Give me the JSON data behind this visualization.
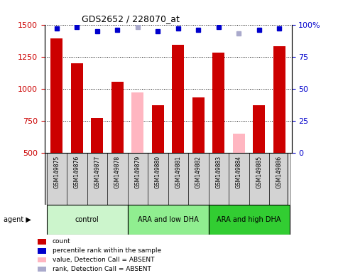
{
  "title": "GDS2652 / 228070_at",
  "samples": [
    "GSM149875",
    "GSM149876",
    "GSM149877",
    "GSM149878",
    "GSM149879",
    "GSM149880",
    "GSM149881",
    "GSM149882",
    "GSM149883",
    "GSM149884",
    "GSM149885",
    "GSM149886"
  ],
  "count_values": [
    1390,
    1200,
    770,
    1055,
    null,
    870,
    1345,
    930,
    1280,
    null,
    870,
    1330
  ],
  "absent_values": [
    null,
    null,
    null,
    null,
    970,
    null,
    null,
    null,
    null,
    650,
    null,
    null
  ],
  "percentile_values": [
    97,
    98,
    95,
    96,
    null,
    95,
    97,
    96,
    98,
    null,
    96,
    97
  ],
  "absent_rank_values": [
    null,
    null,
    null,
    null,
    98,
    null,
    null,
    null,
    null,
    93,
    null,
    null
  ],
  "ylim": [
    500,
    1500
  ],
  "yticks": [
    500,
    750,
    1000,
    1250,
    1500
  ],
  "right_yticks": [
    0,
    25,
    50,
    75,
    100
  ],
  "right_ylim": [
    0,
    100
  ],
  "groups": [
    {
      "label": "control",
      "start": 0,
      "end": 3,
      "color": "#ccf5cc"
    },
    {
      "label": "ARA and low DHA",
      "start": 4,
      "end": 7,
      "color": "#90ee90"
    },
    {
      "label": "ARA and high DHA",
      "start": 8,
      "end": 11,
      "color": "#32cd32"
    }
  ],
  "bar_color_present": "#cc0000",
  "bar_color_absent": "#ffb6c1",
  "dot_color_present": "#0000cc",
  "dot_color_absent": "#aaaacc",
  "bg_color": "#d3d3d3",
  "plot_bg": "#ffffff",
  "grid_color": "#000000",
  "ylabel_color": "#cc0000",
  "ylabel2_color": "#0000cc",
  "bar_width": 0.6,
  "figsize": [
    4.83,
    3.84
  ],
  "dpi": 100
}
